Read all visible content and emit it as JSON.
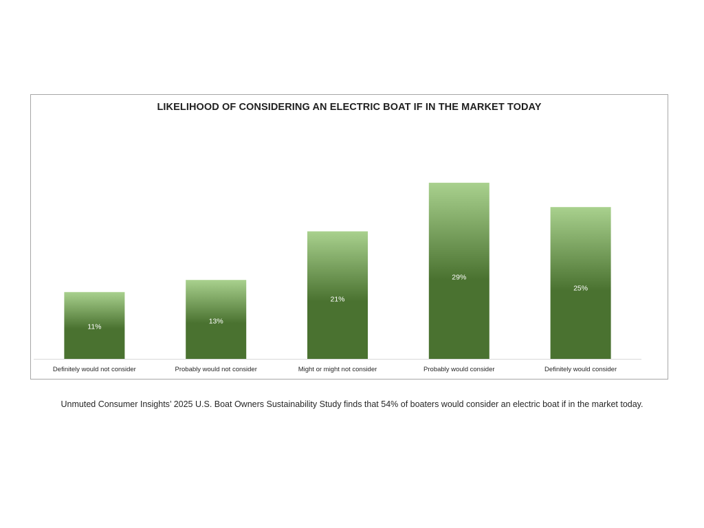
{
  "chart_data": {
    "type": "bar",
    "title": "LIKELIHOOD OF CONSIDERING AN ELECTRIC BOAT IF IN THE MARKET TODAY",
    "categories": [
      "Definitely would not consider",
      "Probably would not consider",
      "Might or might not consider",
      "Probably would consider",
      "Definitely would consider"
    ],
    "values": [
      11,
      13,
      21,
      29,
      25
    ],
    "data_labels": [
      "11%",
      "13%",
      "21%",
      "29%",
      "25%"
    ],
    "unit": "%",
    "ylim": [
      0,
      36
    ],
    "grid": false,
    "legend": "none",
    "bar_gradient": {
      "top": "#a9d18e",
      "bottom": "#4a7230"
    },
    "axis_color": "#d9d9d9",
    "label_color": "#ffffff"
  },
  "caption": "Unmuted Consumer Insights’ 2025 U.S. Boat Owners Sustainability Study finds that 54% of boaters would consider an electric boat if in the market today."
}
